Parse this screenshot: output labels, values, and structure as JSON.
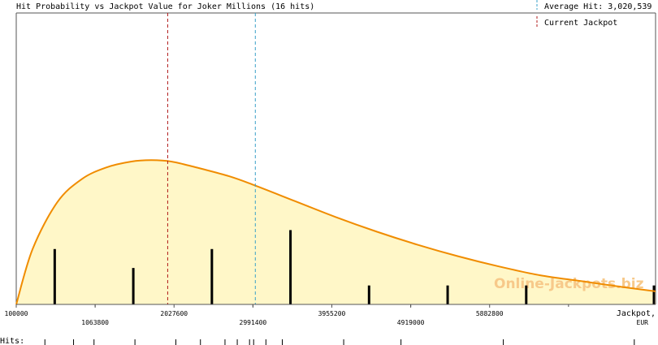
{
  "chart_data": {
    "type": "area",
    "title": "Hit Probability vs Jackpot Value for Joker Millions (16 hits)",
    "xlabel": "Jackpot, EUR",
    "xlabel_line1": "Jackpot,",
    "xlabel_line2": "EUR",
    "hits_label": "Hits:",
    "watermark": "Online-Jackpots.biz",
    "xlim": [
      100000,
      7910000
    ],
    "ylim": [
      0,
      1
    ],
    "grid": false,
    "legend": {
      "position": "top-right",
      "average_label": "Average Hit: 3,020,539",
      "current_label": "Current Jackpot"
    },
    "average_hit": 3020539,
    "current_jackpot": 1950000,
    "colors": {
      "curve": "#f08c00",
      "fill": "#fff7c8",
      "average_line": "#3aa0c8",
      "current_line": "#b01818",
      "bars": "#000000",
      "axis": "#555555"
    },
    "x_ticks_upper": [
      {
        "value": 100000,
        "label": "100000"
      },
      {
        "value": 2027600,
        "label": "2027600"
      },
      {
        "value": 3955200,
        "label": "3955200"
      },
      {
        "value": 5882800,
        "label": "5882800"
      }
    ],
    "x_ticks_lower": [
      {
        "value": 1063800,
        "label": "1063800"
      },
      {
        "value": 2991400,
        "label": "2991400"
      },
      {
        "value": 4919000,
        "label": "4919000"
      }
    ],
    "curve": {
      "x": [
        100000,
        300000,
        600000,
        900000,
        1200000,
        1500000,
        1750000,
        2000000,
        2300000,
        2700000,
        3000000,
        3500000,
        4000000,
        4500000,
        5000000,
        5500000,
        6000000,
        6500000,
        7000000,
        7500000,
        7910000
      ],
      "y": [
        0.0,
        0.19,
        0.35,
        0.43,
        0.47,
        0.49,
        0.495,
        0.49,
        0.47,
        0.44,
        0.41,
        0.355,
        0.3,
        0.25,
        0.205,
        0.165,
        0.13,
        0.1,
        0.08,
        0.06,
        0.045
      ]
    },
    "histogram": {
      "x": [
        570000,
        1530000,
        2490000,
        3450000,
        4410000,
        5370000,
        6330000,
        7910000
      ],
      "y": [
        0.19,
        0.125,
        0.19,
        0.255,
        0.065,
        0.065,
        0.065,
        0.065
      ]
    },
    "hit_markers": [
      450000,
      800000,
      1050000,
      1550000,
      2050000,
      2350000,
      2650000,
      2800000,
      2950000,
      3000000,
      3150000,
      3350000,
      4100000,
      4800000,
      6050000,
      7650000
    ]
  }
}
